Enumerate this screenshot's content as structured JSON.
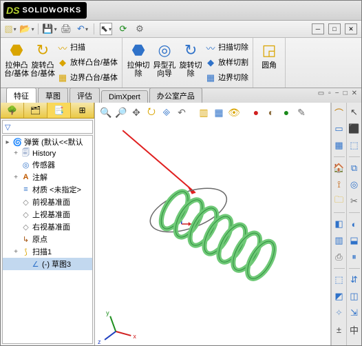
{
  "app": {
    "brand_prefix": "DS",
    "brand_name": "SOLIDWORKS"
  },
  "qat": {
    "new": "▧",
    "open": "📂",
    "save": "💾",
    "print": "🖨",
    "undo": "↶",
    "select": "⬉",
    "rebuild": "⟳",
    "options": "⚙",
    "min": "─",
    "max": "□",
    "close": "✕"
  },
  "ribbon": {
    "extrude": {
      "label": "拉伸凸\n台/基体",
      "icon": "⬣",
      "color": "#d9a400"
    },
    "revolve": {
      "label": "旋转凸\n台/基体",
      "icon": "↻",
      "color": "#d9a400"
    },
    "sweep": {
      "label": "扫描",
      "icon": "〰",
      "color": "#d9a400"
    },
    "loft": {
      "label": "放样凸台/基体",
      "icon": "◆",
      "color": "#d9a400"
    },
    "boundary": {
      "label": "边界凸台/基体",
      "icon": "▦",
      "color": "#d9a400"
    },
    "cut_ext": {
      "label": "拉伸切\n除",
      "icon": "⬣",
      "color": "#2f72c9"
    },
    "hole": {
      "label": "异型孔\n向导",
      "icon": "◎",
      "color": "#2f72c9"
    },
    "cut_rev": {
      "label": "旋转切\n除",
      "icon": "↻",
      "color": "#2f72c9"
    },
    "cut_sweep": {
      "label": "扫描切除",
      "icon": "〰",
      "color": "#2f72c9"
    },
    "cut_loft": {
      "label": "放样切割",
      "icon": "◆",
      "color": "#2f72c9"
    },
    "cut_bound": {
      "label": "边界切除",
      "icon": "▦",
      "color": "#2f72c9"
    },
    "fillet": {
      "label": "圆角",
      "icon": "◲",
      "color": "#d9a400"
    }
  },
  "tabs": [
    "特征",
    "草图",
    "评估",
    "DimXpert",
    "办公室产品"
  ],
  "active_tab": 0,
  "doc_ctrl": {
    "a": "▭",
    "b": "▫",
    "c": "−",
    "d": "□",
    "e": "✕"
  },
  "viewtb": {
    "zoomfit": "🔍",
    "zoomwin": "🔎",
    "pan": "✥",
    "rotview": "⭮",
    "box": "🞜",
    "prev": "↶",
    "sect": "▥",
    "dispstyle": "▦",
    "hide": "👁",
    "appear": "●",
    "scene": "◐",
    "render": "●",
    "edit": "✎"
  },
  "tree": {
    "root": "弹簧  (默认<<默认",
    "history": "History",
    "sensor": "传感器",
    "annot": "注解",
    "material": "材质 <未指定>",
    "front": "前视基准面",
    "top": "上视基准面",
    "right": "右视基准面",
    "origin": "原点",
    "sweep1": "扫描1",
    "sketch3": "(-) 草图3",
    "ic": {
      "root": "🌀",
      "hist": "🗐",
      "sensor": "◎",
      "annot": "A",
      "mat": "≡",
      "plane": "◇",
      "origin": "↳",
      "sweep": "⟆",
      "sketch": "∠"
    },
    "colors": {
      "root": "#d9a400",
      "hist": "#6a86b5",
      "sensor": "#2f72c9",
      "annot": "#c05a00",
      "mat": "#2f72c9",
      "plane": "#7a7a7a",
      "origin": "#a04a00",
      "sweep": "#d9a400",
      "sketch": "#2f72c9"
    }
  },
  "right_tb": {
    "col1": [
      "⌒",
      "▭",
      "▦",
      "🏠",
      "⟟",
      "🗀",
      "◧",
      "▥",
      "⎙",
      "⬚",
      "◩",
      "✧",
      "±"
    ],
    "col2": [
      "↖",
      "⬛",
      "⬚",
      "⧉",
      "◎",
      "✂",
      "◐",
      "⬓",
      "⏸",
      "⇵",
      "◫",
      "⇲",
      "中"
    ],
    "col1_colors": [
      "#c07800",
      "#2f72c9",
      "#2f72c9",
      "#d9a400",
      "#c05a00",
      "#d9a400",
      "#2f72c9",
      "#2f72c9",
      "#6a6a6a",
      "#2f72c9",
      "#2f72c9",
      "#7aa0d0",
      "#444"
    ],
    "col2_colors": [
      "#444",
      "#444",
      "#2f72c9",
      "#2f72c9",
      "#2f72c9",
      "#6a6a6a",
      "#2f72c9",
      "#2f72c9",
      "#2f72c9",
      "#2f72c9",
      "#2f72c9",
      "#2f72c9",
      "#444"
    ]
  },
  "viewport": {
    "spring_color": "#6fc977",
    "spring_edge": "#2f8f3f",
    "ellipse_stroke": "#6a6a6a",
    "arrow_color": "#e02020",
    "triad": {
      "x": "#d02020",
      "y": "#209020",
      "z": "#2040c0"
    }
  }
}
